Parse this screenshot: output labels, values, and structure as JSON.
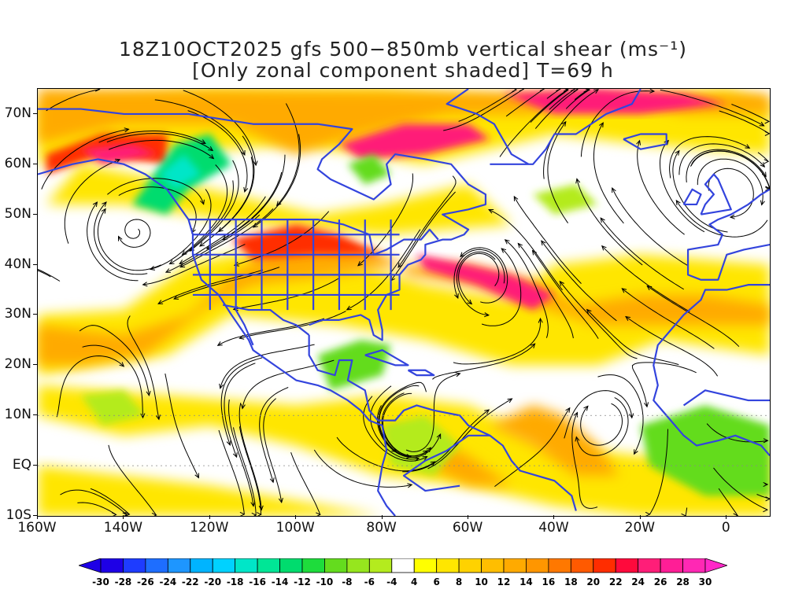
{
  "title": {
    "line1": "18Z10OCT2025 gfs 500−850mb vertical shear (ms⁻¹)",
    "line2": "[Only zonal component shaded] T=69 h"
  },
  "map": {
    "lon_range": [
      -160,
      10
    ],
    "lat_range": [
      -10,
      75
    ],
    "lat_labels": [
      "70N",
      "60N",
      "50N",
      "40N",
      "30N",
      "20N",
      "10N",
      "EQ",
      "10S"
    ],
    "lat_values": [
      70,
      60,
      50,
      40,
      30,
      20,
      10,
      0,
      -10
    ],
    "lon_labels": [
      "160W",
      "140W",
      "120W",
      "100W",
      "80W",
      "60W",
      "40W",
      "20W",
      "0"
    ],
    "lon_values": [
      -160,
      -140,
      -120,
      -100,
      -80,
      -60,
      -40,
      -20,
      0
    ],
    "coastline_color": "#3344dd",
    "streamline_color": "#000000"
  },
  "colorbar": {
    "labels": [
      "-30",
      "-28",
      "-26",
      "-24",
      "-22",
      "-20",
      "-18",
      "-16",
      "-14",
      "-12",
      "-10",
      "-8",
      "-6",
      "-4",
      "4",
      "6",
      "8",
      "10",
      "12",
      "14",
      "16",
      "18",
      "20",
      "22",
      "24",
      "26",
      "28",
      "30"
    ],
    "colors": [
      "#1e00e6",
      "#1e3cff",
      "#1e6eff",
      "#1e96ff",
      "#00b4ff",
      "#00d2ff",
      "#00e6c8",
      "#00e696",
      "#00dc6e",
      "#1edc3c",
      "#64dc1e",
      "#96e61e",
      "#b4eb1e",
      "#ffffff",
      "#ffff00",
      "#ffe600",
      "#ffd200",
      "#ffbe00",
      "#ffaa00",
      "#ff9600",
      "#ff7800",
      "#ff5a00",
      "#ff2d00",
      "#ff0a3c",
      "#ff1e78",
      "#ff1e96",
      "#ff28b4"
    ],
    "low_arrow_color": "#1e00e6",
    "high_arrow_color": "#ff28c8"
  }
}
